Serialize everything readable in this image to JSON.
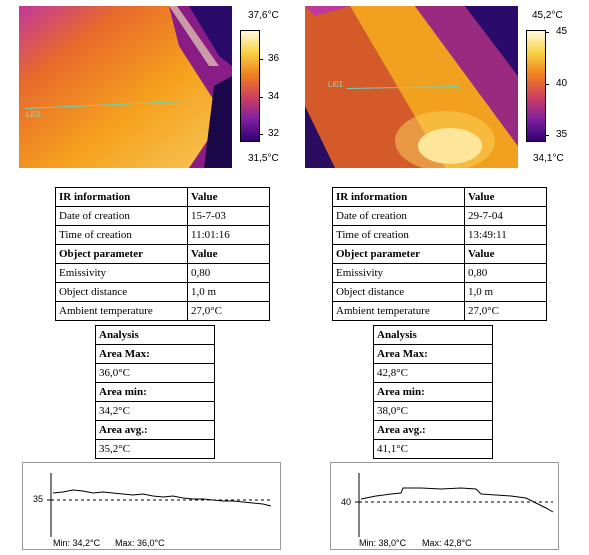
{
  "left": {
    "scale": {
      "max": "37,6°C",
      "min": "31,5°C",
      "ticks": [
        "36",
        "34",
        "32"
      ]
    },
    "line_label": "Li01",
    "info_table": {
      "header": [
        "IR information",
        "Value"
      ],
      "rows": [
        [
          "Date of creation",
          "15-7-03"
        ],
        [
          "Time of creation",
          "11:01:16"
        ]
      ],
      "object_header": [
        "Object parameter",
        "Value"
      ],
      "object_rows": [
        [
          "Emissivity",
          "0,80"
        ],
        [
          "Object distance",
          "1,0 m"
        ],
        [
          "Ambient temperature",
          "27,0°C"
        ]
      ]
    },
    "analysis": {
      "title": "Analysis",
      "max_label": "Area Max:",
      "max_value": "36,0°C",
      "min_label": "Area min:",
      "min_value": "34,2°C",
      "avg_label": "Area avg.:",
      "avg_value": "35,2°C"
    },
    "profile": {
      "y_tick": "35",
      "min_text": "Min: 34,2°C",
      "max_text": "Max: 36,0°C"
    }
  },
  "right": {
    "scale": {
      "max": "45,2°C",
      "min": "34,1°C",
      "ticks": [
        "45",
        "40",
        "35"
      ]
    },
    "line_label": "Li01",
    "info_table": {
      "header": [
        "IR information",
        "Value"
      ],
      "rows": [
        [
          "Date of creation",
          "29-7-04"
        ],
        [
          "Time of creation",
          "13:49:11"
        ]
      ],
      "object_header": [
        "Object parameter",
        "Value"
      ],
      "object_rows": [
        [
          "Emissivity",
          "0,80"
        ],
        [
          "Object distance",
          "1,0 m"
        ],
        [
          "Ambient temperature",
          "27,0°C"
        ]
      ]
    },
    "analysis": {
      "title": "Analysis",
      "max_label": "Area Max:",
      "max_value": "42,8°C",
      "min_label": "Area min:",
      "min_value": "38,0°C",
      "avg_label": "Area avg.:",
      "avg_value": "41,1°C"
    },
    "profile": {
      "y_tick": "40",
      "min_text": "Min: 38,0°C",
      "max_text": "Max: 42,8°C"
    }
  }
}
